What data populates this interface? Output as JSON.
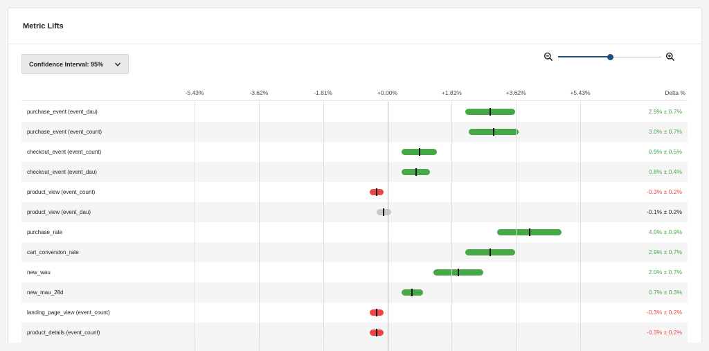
{
  "header": {
    "title": "Metric Lifts"
  },
  "confidence": {
    "label": "Confidence Interval: 95%",
    "chevron_icon": "chevron-down-icon"
  },
  "zoom": {
    "out_icon": "zoom-out-icon",
    "in_icon": "zoom-in-icon",
    "level": 0.51
  },
  "axis": {
    "ticks": [
      "-5.43%",
      "-3.62%",
      "-1.81%",
      "+0.00%",
      "+1.81%",
      "+3.62%",
      "+5.43%"
    ],
    "tick_values": [
      -5.43,
      -3.62,
      -1.81,
      0.0,
      1.81,
      3.62,
      5.43
    ],
    "delta_header": "Delta %"
  },
  "colors": {
    "positive": "#47a848",
    "negative": "#ef4444",
    "neutral": "#c8c8c8",
    "zoom_accent": "#1f4f7f"
  },
  "chart_data": {
    "type": "forest",
    "xlim": [
      -5.43,
      5.43
    ],
    "rows": [
      {
        "name": "purchase_event (event_dau)",
        "delta": 2.9,
        "ci": 0.7,
        "text": "2.9% ± 0.7%",
        "status": "positive"
      },
      {
        "name": "purchase_event (event_count)",
        "delta": 3.0,
        "ci": 0.7,
        "text": "3.0% ± 0.7%",
        "status": "positive"
      },
      {
        "name": "checkout_event (event_count)",
        "delta": 0.9,
        "ci": 0.5,
        "text": "0.9% ± 0.5%",
        "status": "positive"
      },
      {
        "name": "checkout_event (event_dau)",
        "delta": 0.8,
        "ci": 0.4,
        "text": "0.8% ± 0.4%",
        "status": "positive"
      },
      {
        "name": "product_view (event_count)",
        "delta": -0.3,
        "ci": 0.2,
        "text": "-0.3% ± 0.2%",
        "status": "negative"
      },
      {
        "name": "product_view (event_dau)",
        "delta": -0.1,
        "ci": 0.2,
        "text": "-0.1% ± 0.2%",
        "status": "neutral"
      },
      {
        "name": "purchase_rate",
        "delta": 4.0,
        "ci": 0.9,
        "text": "4.0% ± 0.9%",
        "status": "positive"
      },
      {
        "name": "cart_conversion_rate",
        "delta": 2.9,
        "ci": 0.7,
        "text": "2.9% ± 0.7%",
        "status": "positive"
      },
      {
        "name": "new_wau",
        "delta": 2.0,
        "ci": 0.7,
        "text": "2.0% ± 0.7%",
        "status": "positive"
      },
      {
        "name": "new_mau_28d",
        "delta": 0.7,
        "ci": 0.3,
        "text": "0.7% ± 0.3%",
        "status": "positive"
      },
      {
        "name": "landing_page_view (event_count)",
        "delta": -0.3,
        "ci": 0.2,
        "text": "-0.3% ± 0.2%",
        "status": "negative"
      },
      {
        "name": "product_details (event_count)",
        "delta": -0.3,
        "ci": 0.2,
        "text": "-0.3% ± 0.2%",
        "status": "negative"
      }
    ]
  }
}
